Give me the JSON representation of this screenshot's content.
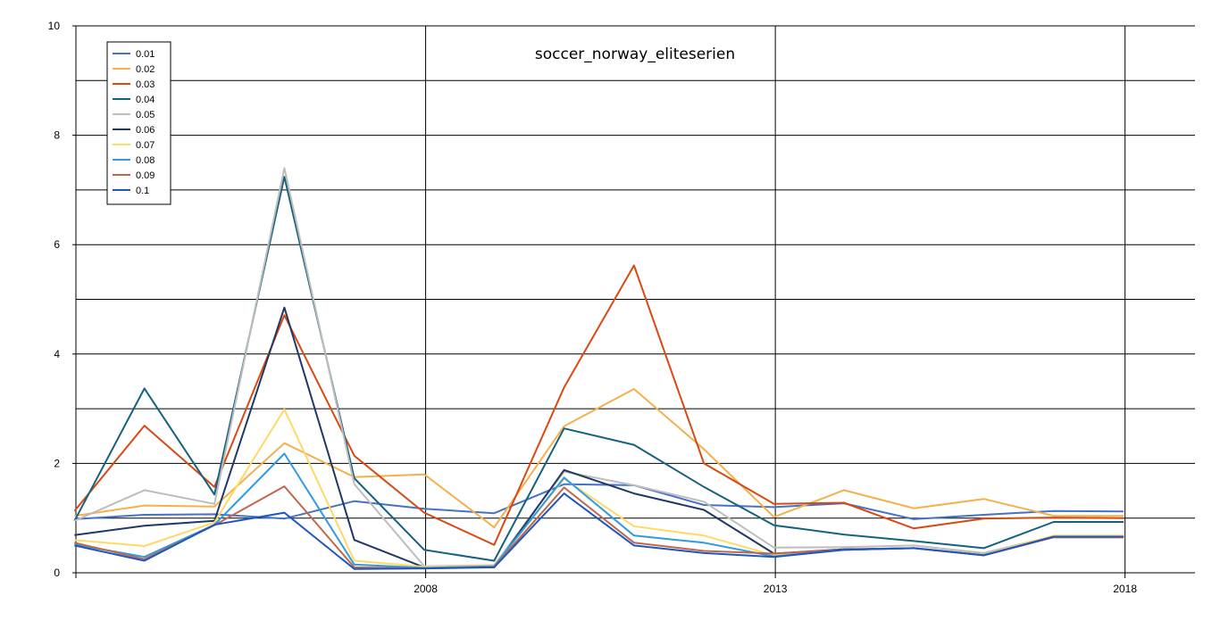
{
  "chart_data": {
    "type": "line",
    "title": "soccer_norway_eliteserien",
    "xlabel": "",
    "ylabel": "",
    "xlim": [
      2003,
      2019
    ],
    "ylim": [
      0,
      10
    ],
    "x_ticks": [
      2008,
      2013,
      2018
    ],
    "y_ticks": [
      0,
      2,
      4,
      6,
      8,
      10
    ],
    "grid": true,
    "legend_position": "top-left",
    "x": [
      2002.98,
      2003.98,
      2004.98,
      2005.98,
      2006.98,
      2007.98,
      2008.98,
      2009.98,
      2010.98,
      2011.98,
      2012.98,
      2013.98,
      2014.98,
      2015.98,
      2016.98,
      2017.98
    ],
    "series": [
      {
        "name": "0.01",
        "color": "#4472c4",
        "values": [
          0.98,
          1.06,
          1.07,
          0.99,
          1.31,
          1.17,
          1.09,
          1.62,
          1.6,
          1.24,
          1.2,
          1.27,
          0.98,
          1.06,
          1.13,
          1.12
        ]
      },
      {
        "name": "0.02",
        "color": "#f4b04a",
        "values": [
          1.04,
          1.23,
          1.21,
          2.37,
          1.75,
          1.8,
          0.83,
          2.68,
          3.36,
          2.26,
          1.02,
          1.51,
          1.18,
          1.35,
          1.04,
          1.04
        ]
      },
      {
        "name": "0.03",
        "color": "#d84a14",
        "values": [
          1.13,
          2.69,
          1.57,
          4.71,
          2.14,
          1.1,
          0.51,
          3.39,
          5.62,
          2.0,
          1.26,
          1.28,
          0.81,
          0.99,
          1.01,
          1.0
        ]
      },
      {
        "name": "0.04",
        "color": "#15627f",
        "values": [
          0.95,
          3.37,
          1.43,
          7.24,
          1.73,
          0.42,
          0.22,
          2.64,
          2.34,
          1.57,
          0.87,
          0.7,
          0.58,
          0.45,
          0.93,
          0.93
        ]
      },
      {
        "name": "0.05",
        "color": "#bdbdbd",
        "values": [
          0.95,
          1.51,
          1.26,
          7.4,
          1.62,
          0.12,
          0.14,
          1.85,
          1.6,
          1.3,
          0.46,
          0.47,
          0.5,
          0.36,
          0.67,
          0.67
        ]
      },
      {
        "name": "0.06",
        "color": "#1f3864",
        "values": [
          0.69,
          0.86,
          0.95,
          4.85,
          0.6,
          0.1,
          0.1,
          1.88,
          1.45,
          1.15,
          0.35,
          0.43,
          0.45,
          0.33,
          0.66,
          0.66
        ]
      },
      {
        "name": "0.07",
        "color": "#ffd966",
        "values": [
          0.6,
          0.49,
          0.92,
          2.99,
          0.22,
          0.11,
          0.13,
          1.72,
          0.85,
          0.68,
          0.32,
          0.42,
          0.45,
          0.33,
          0.68,
          0.68
        ]
      },
      {
        "name": "0.08",
        "color": "#2e9be0",
        "values": [
          0.52,
          0.29,
          0.88,
          2.18,
          0.15,
          0.09,
          0.12,
          1.74,
          0.68,
          0.55,
          0.3,
          0.42,
          0.45,
          0.32,
          0.65,
          0.65
        ]
      },
      {
        "name": "0.09",
        "color": "#c0674a",
        "values": [
          0.55,
          0.25,
          0.87,
          1.58,
          0.1,
          0.08,
          0.11,
          1.56,
          0.55,
          0.4,
          0.35,
          0.42,
          0.45,
          0.32,
          0.65,
          0.65
        ]
      },
      {
        "name": "0.1",
        "color": "#1e56c0",
        "values": [
          0.5,
          0.22,
          0.88,
          1.1,
          0.07,
          0.08,
          0.1,
          1.45,
          0.5,
          0.36,
          0.29,
          0.42,
          0.45,
          0.32,
          0.66,
          0.66
        ]
      }
    ]
  }
}
